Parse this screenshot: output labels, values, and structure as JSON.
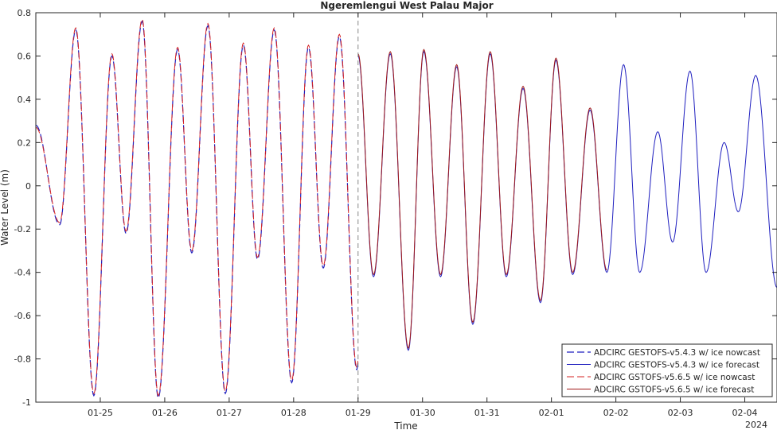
{
  "chart_data": {
    "type": "line",
    "title": "Ngeremlengui West Palau Major",
    "xlabel": "Time",
    "ylabel": "Water Level (m)",
    "ylim": [
      -1,
      0.8
    ],
    "y_ticks": [
      -1,
      -0.8,
      -0.6,
      -0.4,
      -0.2,
      0,
      0.2,
      0.4,
      0.6,
      0.8
    ],
    "y_tick_labels": [
      "-1",
      "-0.8",
      "-0.6",
      "-0.4",
      "-0.2",
      "0",
      "0.2",
      "0.4",
      "0.6",
      "0.8"
    ],
    "xlim": [
      "2024-01-24 00:00",
      "2024-02-04 12:00"
    ],
    "x_ticks": [
      "2024-01-25",
      "2024-01-26",
      "2024-01-27",
      "2024-01-28",
      "2024-01-29",
      "2024-01-30",
      "2024-01-31",
      "2024-02-01",
      "2024-02-02",
      "2024-02-03",
      "2024-02-04"
    ],
    "x_tick_labels": [
      "01-25",
      "01-26",
      "01-27",
      "01-28",
      "01-29",
      "01-30",
      "01-31",
      "02-01",
      "02-02",
      "02-03",
      "02-04"
    ],
    "x_year_label": "2024",
    "forecast_start": "2024-01-29 00:00",
    "grid": false,
    "legend_position": "bottom-right",
    "extrema_time_unit": "days after 2024-01-24 00:00",
    "series": [
      {
        "name": "ADCIRC GESTOFS-v5.4.3 w/ ice nowcast",
        "color": "#1f1fbf",
        "style": "dashed",
        "width": 1.2,
        "extrema": [
          [
            0,
            0.28
          ],
          [
            0.37,
            -0.18
          ],
          [
            0.62,
            0.72
          ],
          [
            0.9,
            -0.97
          ],
          [
            1.18,
            0.6
          ],
          [
            1.4,
            -0.22
          ],
          [
            1.65,
            0.76
          ],
          [
            1.9,
            -0.98
          ],
          [
            2.2,
            0.63
          ],
          [
            2.42,
            -0.31
          ],
          [
            2.67,
            0.74
          ],
          [
            2.94,
            -0.96
          ],
          [
            3.22,
            0.65
          ],
          [
            3.44,
            -0.34
          ],
          [
            3.7,
            0.72
          ],
          [
            3.97,
            -0.91
          ],
          [
            4.23,
            0.64
          ],
          [
            4.46,
            -0.38
          ],
          [
            4.71,
            0.69
          ],
          [
            4.98,
            -0.85
          ],
          [
            5.0,
            -0.82
          ]
        ]
      },
      {
        "name": "ADCIRC GESTOFS-v5.4.3 w/ ice forecast",
        "color": "#1f1fbf",
        "style": "solid",
        "width": 1.0,
        "extrema": [
          [
            5.0,
            0.6
          ],
          [
            5.24,
            -0.42
          ],
          [
            5.5,
            0.61
          ],
          [
            5.78,
            -0.76
          ],
          [
            6.02,
            0.62
          ],
          [
            6.28,
            -0.42
          ],
          [
            6.53,
            0.55
          ],
          [
            6.78,
            -0.64
          ],
          [
            7.05,
            0.61
          ],
          [
            7.3,
            -0.42
          ],
          [
            7.56,
            0.45
          ],
          [
            7.83,
            -0.54
          ],
          [
            8.07,
            0.58
          ],
          [
            8.33,
            -0.41
          ],
          [
            8.6,
            0.35
          ],
          [
            8.86,
            -0.4
          ],
          [
            9.12,
            0.56
          ],
          [
            9.37,
            -0.4
          ],
          [
            9.65,
            0.25
          ],
          [
            9.88,
            -0.26
          ],
          [
            10.15,
            0.53
          ],
          [
            10.4,
            -0.4
          ],
          [
            10.68,
            0.2
          ],
          [
            10.9,
            -0.12
          ],
          [
            11.17,
            0.51
          ],
          [
            11.5,
            -0.47
          ]
        ]
      },
      {
        "name": "ADCIRC GSTOFS-v5.6.5 w/ ice nowcast",
        "color": "#d62020",
        "style": "dashed",
        "width": 1.0,
        "extrema": [
          [
            0,
            0.27
          ],
          [
            0.37,
            -0.17
          ],
          [
            0.62,
            0.73
          ],
          [
            0.9,
            -0.96
          ],
          [
            1.18,
            0.61
          ],
          [
            1.4,
            -0.21
          ],
          [
            1.65,
            0.77
          ],
          [
            1.9,
            -0.97
          ],
          [
            2.2,
            0.64
          ],
          [
            2.42,
            -0.3
          ],
          [
            2.67,
            0.75
          ],
          [
            2.94,
            -0.95
          ],
          [
            3.22,
            0.66
          ],
          [
            3.44,
            -0.33
          ],
          [
            3.7,
            0.73
          ],
          [
            3.97,
            -0.9
          ],
          [
            4.23,
            0.65
          ],
          [
            4.46,
            -0.37
          ],
          [
            4.71,
            0.7
          ],
          [
            4.98,
            -0.84
          ],
          [
            5.0,
            -0.81
          ]
        ]
      },
      {
        "name": "ADCIRC GSTOFS-v5.6.5 w/ ice forecast",
        "color": "#a01818",
        "style": "solid",
        "width": 1.0,
        "extrema": [
          [
            5.0,
            0.61
          ],
          [
            5.24,
            -0.41
          ],
          [
            5.5,
            0.62
          ],
          [
            5.78,
            -0.75
          ],
          [
            6.02,
            0.63
          ],
          [
            6.28,
            -0.41
          ],
          [
            6.53,
            0.56
          ],
          [
            6.78,
            -0.63
          ],
          [
            7.05,
            0.62
          ],
          [
            7.3,
            -0.41
          ],
          [
            7.56,
            0.46
          ],
          [
            7.83,
            -0.53
          ],
          [
            8.07,
            0.59
          ],
          [
            8.33,
            -0.4
          ],
          [
            8.6,
            0.36
          ],
          [
            8.86,
            -0.39
          ]
        ]
      }
    ]
  }
}
